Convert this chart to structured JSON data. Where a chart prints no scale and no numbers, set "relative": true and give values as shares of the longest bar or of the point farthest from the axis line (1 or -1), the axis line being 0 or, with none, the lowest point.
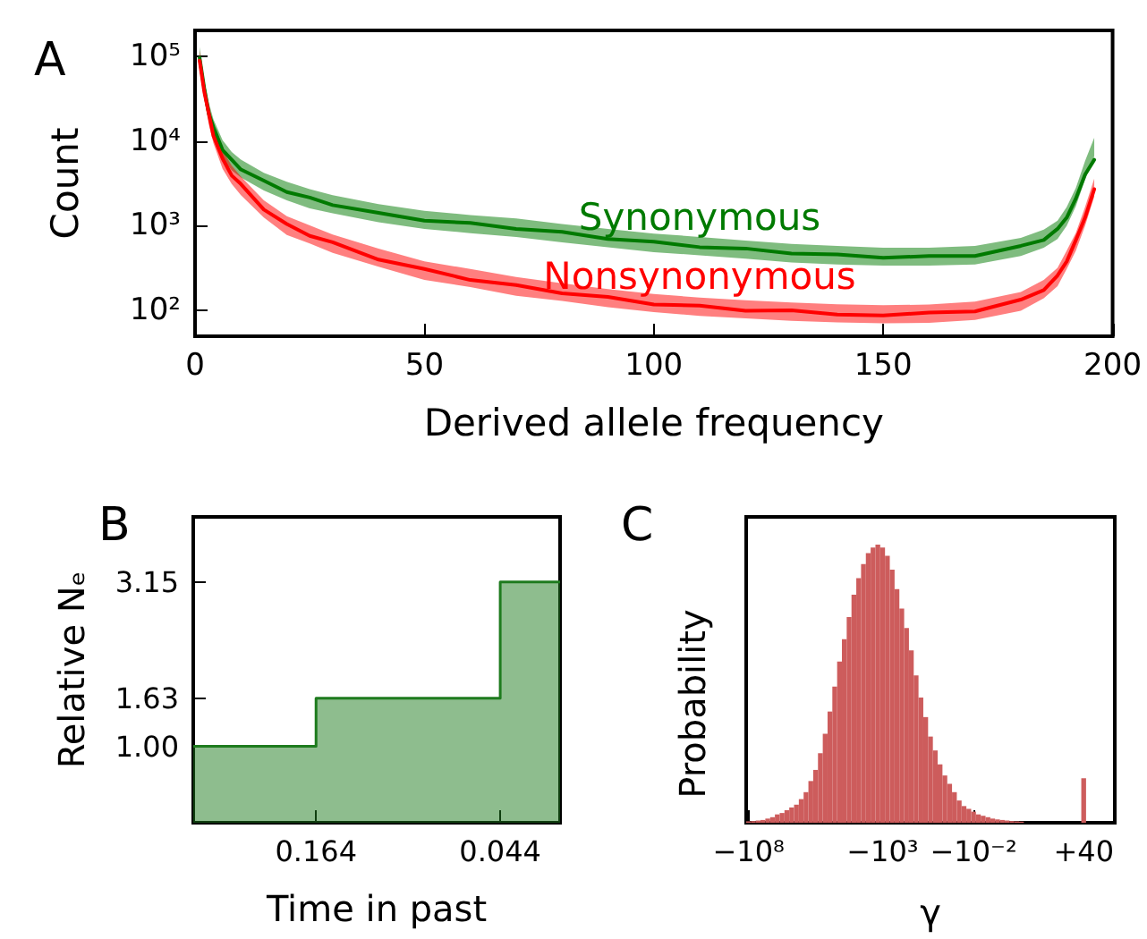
{
  "chart_data": [
    {
      "type": "line",
      "title": "A",
      "xlabel": "Derived allele frequency",
      "ylabel": "Count",
      "xlim": [
        0,
        200
      ],
      "xticks": [
        0,
        50,
        100,
        150,
        200
      ],
      "ylim": [
        50,
        200000
      ],
      "yticks": [
        {
          "value": 100,
          "label": "10²"
        },
        {
          "value": 1000,
          "label": "10³"
        },
        {
          "value": 10000,
          "label": "10⁴"
        },
        {
          "value": 100000,
          "label": "10⁵"
        }
      ],
      "log": "y",
      "marker": "none",
      "line_style": "solid",
      "series": [
        {
          "name": "Synonymous",
          "color": "#007a00",
          "x": [
            1,
            2,
            3,
            4,
            6,
            8,
            10,
            15,
            20,
            25,
            30,
            40,
            50,
            60,
            70,
            80,
            90,
            100,
            110,
            120,
            130,
            140,
            150,
            160,
            170,
            180,
            185,
            188,
            190,
            192,
            194,
            196
          ],
          "values": [
            95000,
            42000,
            21000,
            14500,
            7800,
            6000,
            4600,
            3400,
            2500,
            2150,
            1750,
            1420,
            1150,
            1080,
            920,
            850,
            700,
            650,
            560,
            540,
            470,
            460,
            420,
            440,
            440,
            580,
            680,
            920,
            1250,
            2100,
            4000,
            6000
          ],
          "lower": [
            78000,
            31000,
            17000,
            11000,
            6200,
            4500,
            3700,
            2600,
            2000,
            1600,
            1400,
            1100,
            920,
            820,
            740,
            640,
            560,
            490,
            450,
            410,
            370,
            350,
            340,
            340,
            350,
            440,
            550,
            700,
            1000,
            1700,
            3500,
            6600
          ],
          "upper": [
            128000,
            51000,
            28000,
            18000,
            10200,
            7400,
            6000,
            4200,
            3300,
            2700,
            2300,
            1800,
            1500,
            1340,
            1220,
            1050,
            920,
            810,
            740,
            670,
            610,
            580,
            550,
            550,
            580,
            720,
            900,
            1150,
            1660,
            2800,
            5800,
            10900
          ]
        },
        {
          "name": "Nonsynonymous",
          "color": "#ff0000",
          "x": [
            1,
            2,
            3,
            4,
            6,
            8,
            10,
            15,
            20,
            25,
            30,
            40,
            50,
            60,
            70,
            80,
            90,
            100,
            110,
            120,
            130,
            140,
            150,
            160,
            170,
            180,
            185,
            188,
            190,
            192,
            194,
            196
          ],
          "values": [
            88000,
            38000,
            21000,
            11500,
            6200,
            3900,
            3100,
            1550,
            1050,
            760,
            640,
            400,
            310,
            230,
            200,
            160,
            145,
            118,
            115,
            100,
            101,
            90,
            88,
            95,
            98,
            135,
            175,
            260,
            380,
            680,
            1250,
            2700
          ],
          "lower": [
            70000,
            31000,
            15600,
            9400,
            4700,
            3100,
            2300,
            1250,
            780,
            620,
            480,
            330,
            230,
            190,
            150,
            130,
            110,
            96,
            87,
            81,
            76,
            73,
            71,
            72,
            78,
            100,
            140,
            195,
            310,
            510,
            1000,
            2200
          ],
          "upper": [
            115000,
            51000,
            25600,
            15400,
            7700,
            5100,
            3800,
            2000,
            1300,
            1010,
            790,
            540,
            380,
            310,
            250,
            210,
            180,
            157,
            143,
            133,
            125,
            119,
            116,
            118,
            128,
            166,
            230,
            320,
            510,
            830,
            1660,
            3600
          ]
        }
      ]
    },
    {
      "type": "area",
      "title": "B",
      "xlabel": "Time in past",
      "ylabel": "Relative Nₑ",
      "x": [
        0.244,
        0.164,
        0.164,
        0.044,
        0.044,
        0.005
      ],
      "values": [
        1.0,
        1.0,
        1.63,
        1.63,
        3.15,
        3.15
      ],
      "color": "#1e7b1e",
      "xlim": [
        0.244,
        0.005
      ],
      "xticks": [
        0.164,
        0.044
      ],
      "ylim": [
        0,
        4
      ],
      "yticks": [
        {
          "value": 1,
          "label": "1.00"
        },
        {
          "value": 1.63,
          "label": "1.63"
        },
        {
          "value": 3.15,
          "label": "3.15"
        }
      ]
    },
    {
      "type": "bar",
      "title": "C",
      "xlabel": "γ",
      "ylabel": "Probability",
      "relative": true,
      "tick_labels": "x",
      "color": "#cd5c5c",
      "categories": [
        "−10⁸",
        null,
        null,
        null,
        null,
        null,
        null,
        null,
        null,
        null,
        null,
        null,
        null,
        null,
        null,
        null,
        null,
        null,
        null,
        null,
        null,
        null,
        null,
        null,
        null,
        null,
        null,
        null,
        "−10³",
        null,
        null,
        null,
        null,
        null,
        null,
        null,
        null,
        null,
        null,
        null,
        null,
        null,
        null,
        null,
        null,
        null,
        null,
        "−10⁻²",
        null,
        null,
        null,
        null,
        null,
        null,
        null,
        null,
        null,
        null,
        null,
        null,
        null,
        null,
        null,
        null,
        null,
        null,
        null,
        null,
        null,
        null,
        "+40",
        null,
        null,
        null,
        null,
        null,
        null
      ],
      "values": [
        0.005,
        0.006,
        0.008,
        0.01,
        0.015,
        0.02,
        0.03,
        0.035,
        0.045,
        0.055,
        0.065,
        0.085,
        0.11,
        0.15,
        0.19,
        0.25,
        0.32,
        0.4,
        0.49,
        0.58,
        0.66,
        0.74,
        0.82,
        0.88,
        0.93,
        0.97,
        0.99,
        1.0,
        0.99,
        0.96,
        0.91,
        0.84,
        0.77,
        0.7,
        0.62,
        0.53,
        0.45,
        0.38,
        0.31,
        0.26,
        0.21,
        0.17,
        0.14,
        0.11,
        0.08,
        0.06,
        0.05,
        0.04,
        0.03,
        0.025,
        0.02,
        0.015,
        0.012,
        0.01,
        0.008,
        0.006,
        0.005,
        0.004,
        null,
        null,
        null,
        null,
        null,
        null,
        null,
        null,
        null,
        null,
        null,
        null,
        0.16,
        null,
        null,
        null,
        null,
        null,
        null
      ]
    }
  ]
}
